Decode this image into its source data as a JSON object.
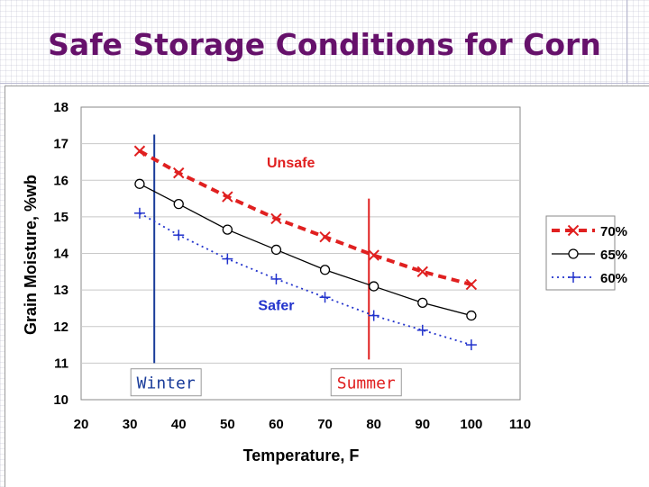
{
  "slide": {
    "title": "Safe Storage Conditions for Corn"
  },
  "chart_data": {
    "type": "line",
    "xlabel": "Temperature, F",
    "ylabel": "Grain Moisture, %wb",
    "xlim": [
      20,
      110
    ],
    "ylim": [
      10,
      18
    ],
    "xticks": [
      20,
      30,
      40,
      50,
      60,
      70,
      80,
      90,
      100,
      110
    ],
    "yticks": [
      10,
      11,
      12,
      13,
      14,
      15,
      16,
      17,
      18
    ],
    "grid": true,
    "legend_position": "right",
    "x": [
      32,
      40,
      50,
      60,
      70,
      80,
      90,
      100
    ],
    "series": [
      {
        "name": "70%",
        "values": [
          16.8,
          16.2,
          15.55,
          14.95,
          14.45,
          13.95,
          13.5,
          13.15
        ],
        "color": "#e02020",
        "marker": "x",
        "dash": "dashed"
      },
      {
        "name": "65%",
        "values": [
          15.9,
          15.35,
          14.65,
          14.1,
          13.55,
          13.1,
          12.65,
          12.3
        ],
        "color": "#000000",
        "marker": "o",
        "dash": "solid"
      },
      {
        "name": "60%",
        "values": [
          15.1,
          14.5,
          13.85,
          13.3,
          12.8,
          12.3,
          11.9,
          11.5
        ],
        "color": "#2233cc",
        "marker": "+",
        "dash": "dotted"
      }
    ],
    "annotations": [
      {
        "text": "Unsafe",
        "x": 63,
        "y": 16.35,
        "color": "#e02020"
      },
      {
        "text": "Safer",
        "x": 60,
        "y": 12.45,
        "color": "#2233cc"
      }
    ],
    "reference_lines": [
      {
        "label": "Winter",
        "x": 35,
        "y_from": 11,
        "y_to": 17.25,
        "color": "#1a3c9a"
      },
      {
        "label": "Summer",
        "x": 79,
        "y_from": 11.1,
        "y_to": 15.5,
        "color": "#e02020"
      }
    ]
  }
}
